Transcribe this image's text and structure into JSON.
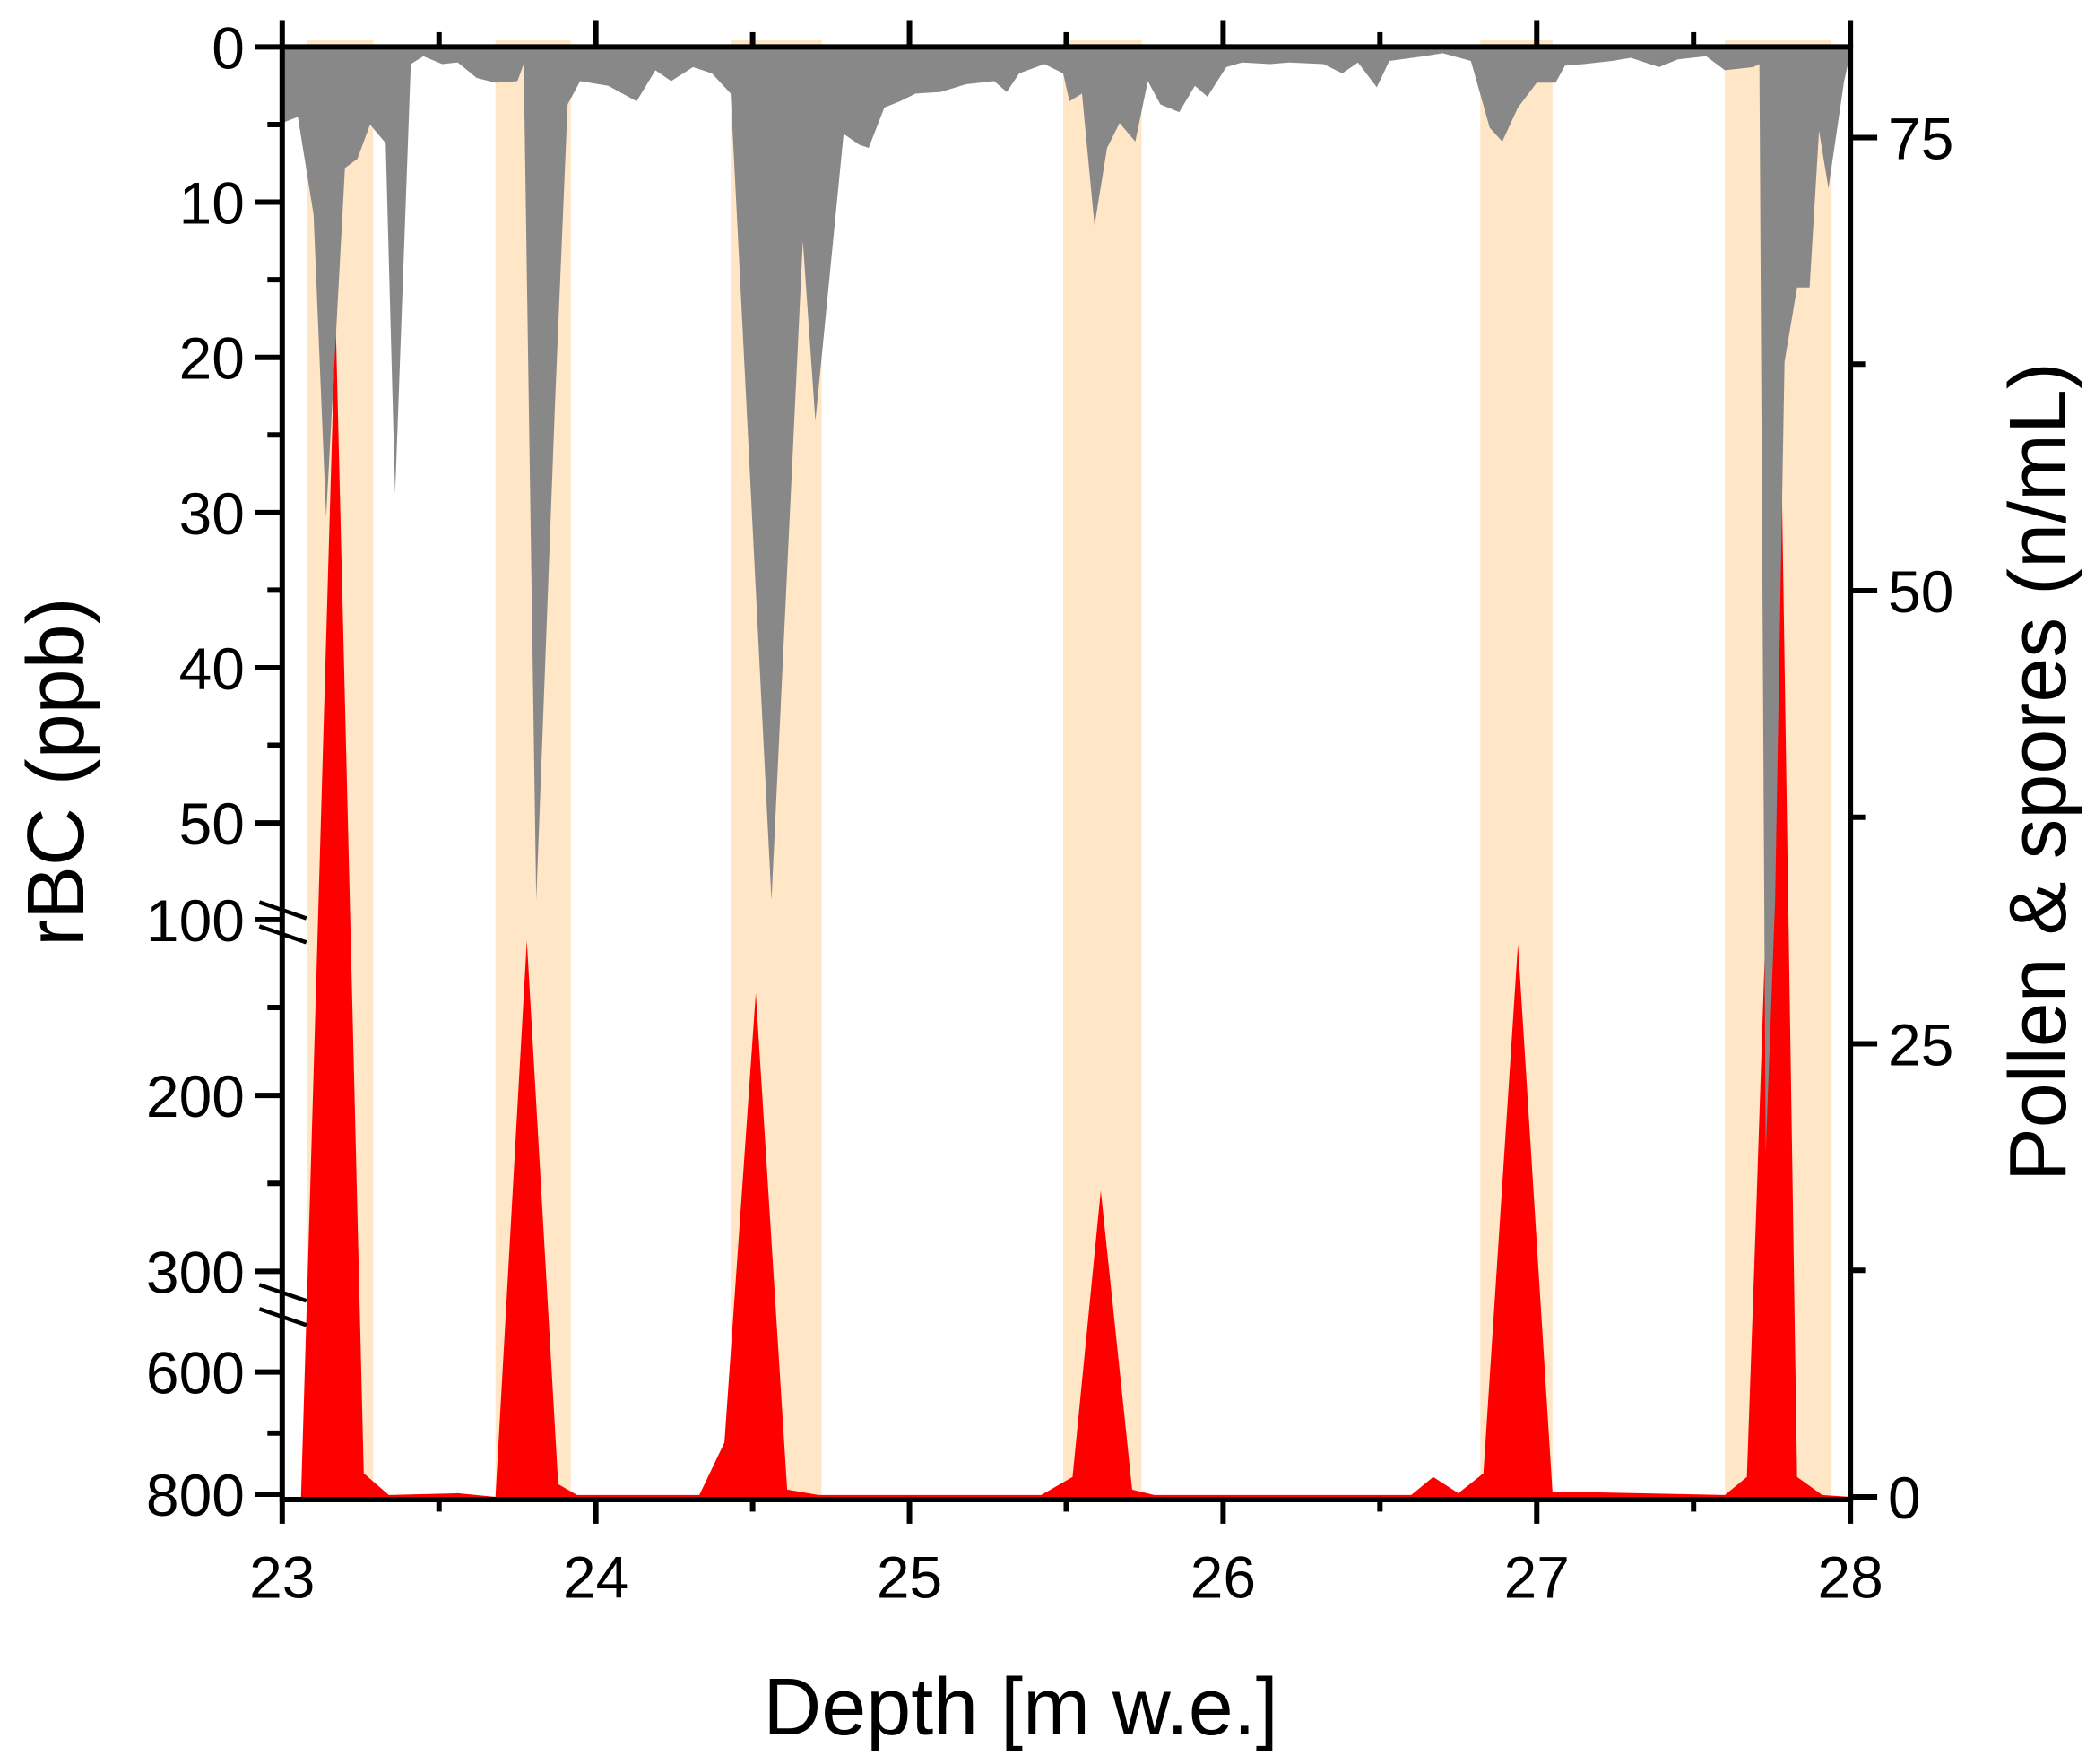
{
  "chart_data": {
    "type": "area",
    "xlabel": "Depth [m w.e.]",
    "ylabel_left": "rBC (ppb)",
    "ylabel_right": "Pollen & spores (n/mL)",
    "xlim": [
      23,
      28
    ],
    "x_ticks": [
      "23",
      "24",
      "25",
      "26",
      "27",
      "28"
    ],
    "left_axis": {
      "reversed": true,
      "broken": true,
      "segments": [
        [
          0,
          50
        ],
        [
          100,
          300
        ],
        [
          600,
          800
        ]
      ],
      "ticks": [
        "0",
        "10",
        "20",
        "30",
        "40",
        "50",
        "100",
        "200",
        "300",
        "600",
        "800"
      ]
    },
    "right_axis": {
      "ylim": [
        0,
        80
      ],
      "ticks": [
        "0",
        "25",
        "50",
        "75"
      ]
    },
    "grid": false,
    "colors": {
      "rbc": "#888888",
      "pollen": "#FF0000",
      "band": "#FFE6C6"
    },
    "highlight_bands": [
      [
        23.08,
        23.29
      ],
      [
        23.68,
        23.92
      ],
      [
        24.43,
        24.72
      ],
      [
        25.49,
        25.74
      ],
      [
        26.82,
        27.05
      ],
      [
        27.6,
        27.94
      ]
    ],
    "series": [
      {
        "axis": "left",
        "color": "#888888",
        "x": [
          23.0,
          23.05,
          23.1,
          23.14,
          23.2,
          23.24,
          23.28,
          23.33,
          23.36,
          23.41,
          23.45,
          23.51,
          23.56,
          23.62,
          23.68,
          23.75,
          23.77,
          23.81,
          23.87,
          23.91,
          23.95,
          24.04,
          24.13,
          24.19,
          24.24,
          24.31,
          24.37,
          24.43,
          24.56,
          24.66,
          24.7,
          24.79,
          24.84,
          24.87,
          24.92,
          24.97,
          25.02,
          25.1,
          25.18,
          25.27,
          25.31,
          25.35,
          25.43,
          25.49,
          25.51,
          25.55,
          25.59,
          25.63,
          25.67,
          25.72,
          25.76,
          25.8,
          25.86,
          25.91,
          25.95,
          26.01,
          26.06,
          26.15,
          26.21,
          26.32,
          26.38,
          26.43,
          26.49,
          26.53,
          26.64,
          26.7,
          26.79,
          26.85,
          26.89,
          26.94,
          27.0,
          27.06,
          27.09,
          27.15,
          27.24,
          27.3,
          27.39,
          27.45,
          27.54,
          27.6,
          27.69,
          27.71,
          27.73,
          27.76,
          27.79,
          27.83,
          27.87,
          27.9,
          27.93,
          27.98,
          28.0
        ],
        "y": [
          4.9,
          4.5,
          10.8,
          30.3,
          7.8,
          7.2,
          5.0,
          6.2,
          28.8,
          1.1,
          0.6,
          1.1,
          1.0,
          2.0,
          2.3,
          2.2,
          1.1,
          90,
          22.9,
          3.7,
          2.2,
          2.5,
          3.5,
          1.5,
          2.2,
          1.3,
          1.7,
          3.0,
          90,
          12.5,
          24.1,
          5.6,
          6.3,
          6.5,
          3.9,
          3.5,
          3.0,
          2.9,
          2.4,
          2.2,
          2.9,
          1.7,
          1.1,
          1.7,
          3.5,
          3.0,
          11.5,
          6.5,
          4.9,
          6.1,
          2.2,
          3.7,
          4.2,
          2.5,
          3.2,
          1.3,
          1.0,
          1.1,
          1.0,
          1.1,
          1.7,
          1.0,
          2.6,
          0.9,
          0.6,
          0.4,
          0.9,
          5.2,
          6.1,
          3.9,
          2.3,
          2.3,
          1.2,
          1.1,
          0.9,
          0.7,
          1.3,
          0.8,
          0.6,
          1.5,
          1.3,
          1.1,
          233,
          90,
          20.3,
          15.5,
          15.5,
          5.4,
          9.1,
          2.2,
          0.4
        ]
      },
      {
        "axis": "right",
        "color": "#FF0000",
        "x": [
          23.06,
          23.09,
          23.17,
          23.26,
          23.34,
          23.56,
          23.68,
          23.78,
          23.88,
          23.94,
          24.33,
          24.41,
          24.51,
          24.61,
          24.71,
          25.42,
          25.52,
          25.61,
          25.71,
          25.78,
          26.6,
          26.67,
          26.75,
          26.83,
          26.94,
          27.05,
          27.6,
          27.67,
          27.7,
          27.78,
          27.83,
          27.91,
          28.0
        ],
        "y": [
          0,
          17.4,
          65.2,
          1.3,
          0.1,
          0.2,
          0,
          30.7,
          0.7,
          0.1,
          0.1,
          3.0,
          27.8,
          0.4,
          0.1,
          0.1,
          1.1,
          16.9,
          0.4,
          0.1,
          0.1,
          1.1,
          0.2,
          1.3,
          30.5,
          0.3,
          0.1,
          1.1,
          15.9,
          57.4,
          1.1,
          0.1,
          0
        ]
      }
    ]
  }
}
